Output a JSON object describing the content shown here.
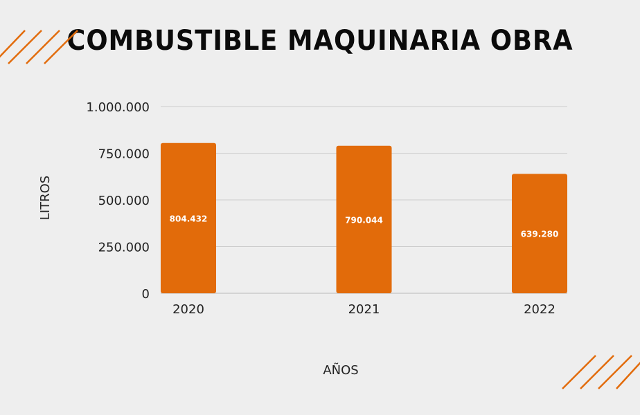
{
  "colors": {
    "background": "#eeeeee",
    "bar": "#e26b0a",
    "gridline": "#cccccc",
    "text": "#222222",
    "accent_stripes": "#e26b0a"
  },
  "chart_data": {
    "type": "bar",
    "title": "COMBUSTIBLE MAQUINARIA OBRA",
    "xlabel": "AÑOS",
    "ylabel": "LITROS",
    "categories": [
      "2020",
      "2021",
      "2022"
    ],
    "values": [
      804432,
      790044,
      639280
    ],
    "value_labels": [
      "804.432",
      "790.044",
      "639.280"
    ],
    "ylim": [
      0,
      1000000
    ],
    "yticks": [
      0,
      250000,
      500000,
      750000,
      1000000
    ],
    "ytick_labels": [
      "0",
      "250.000",
      "500.000",
      "750.000",
      "1.000.000"
    ],
    "grid": true,
    "legend": "none"
  }
}
